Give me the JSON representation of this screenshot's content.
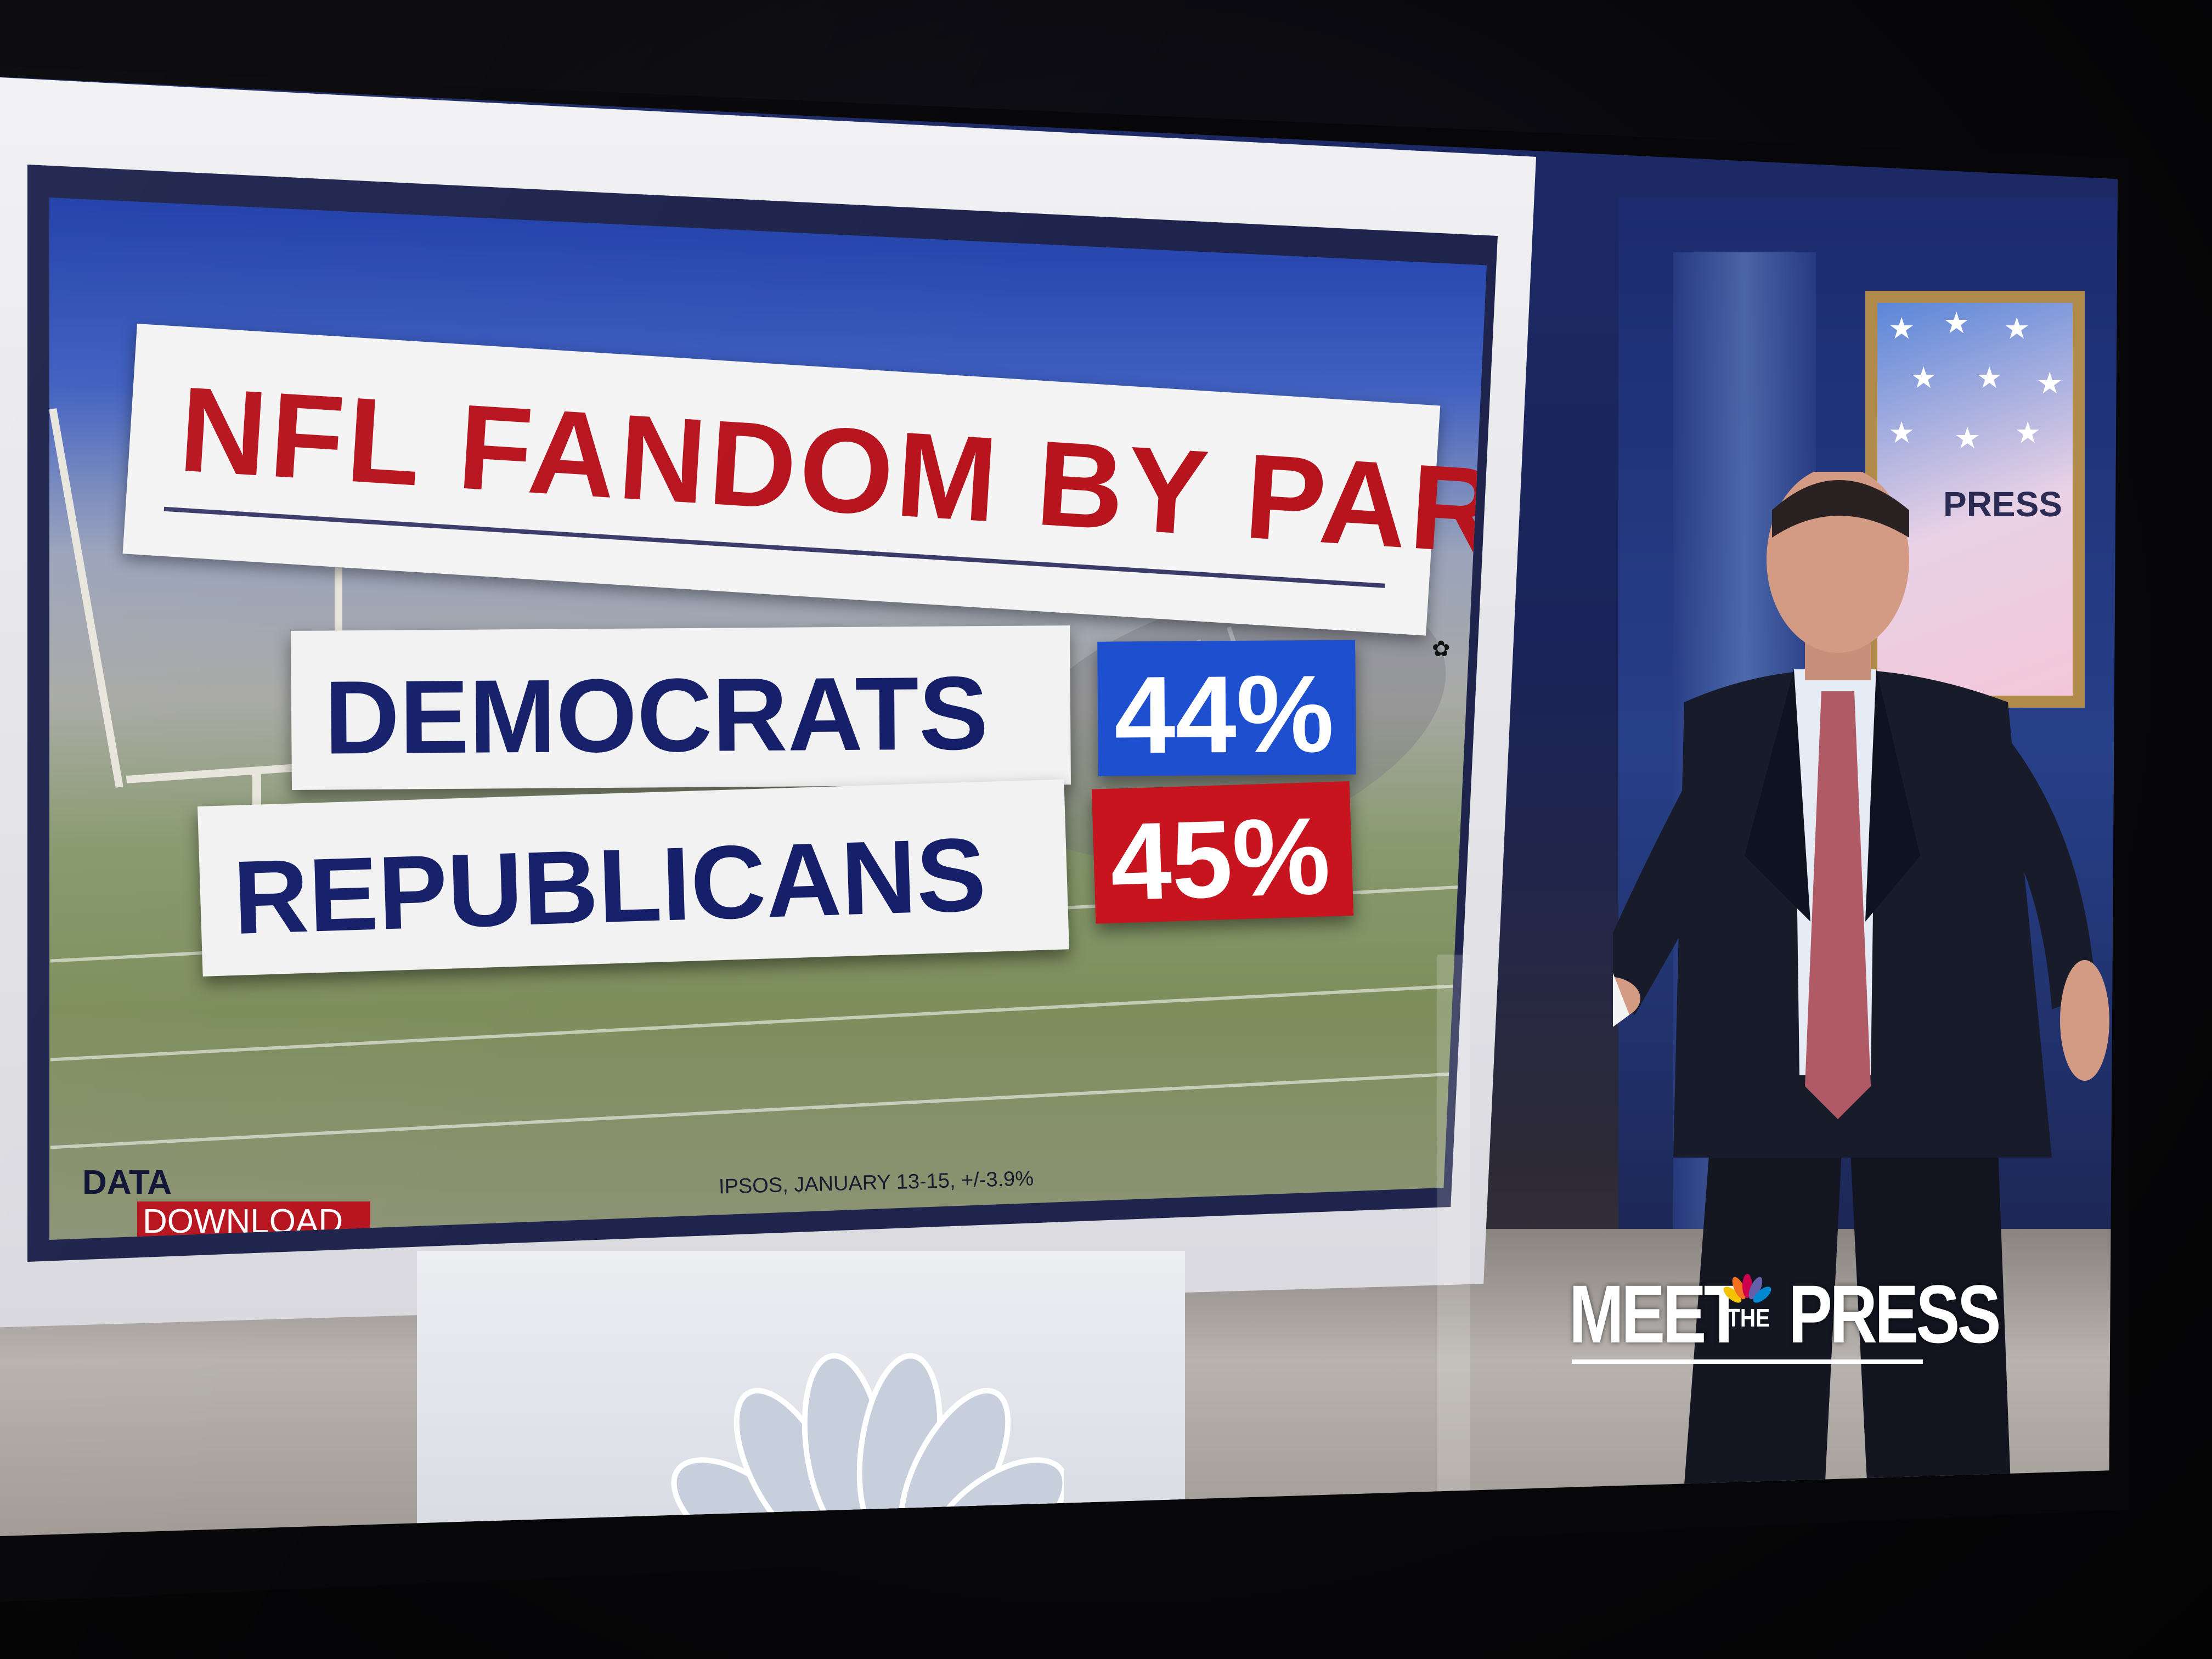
{
  "graphic": {
    "title": "NFL FANDOM BY PARTY",
    "rows": [
      {
        "label": "DEMOCRATS",
        "value": "44%",
        "color": "#1d4fcf"
      },
      {
        "label": "REPUBLICANS",
        "value": "45%",
        "color": "#c8141f"
      }
    ],
    "source": "IPSOS, JANUARY 13-15, +/-3.9%",
    "segment_line1": "DATA",
    "segment_line2": "DOWNLOAD"
  },
  "show_logo": {
    "part1": "MEET",
    "part2": "THE",
    "part3": "PRESS"
  },
  "background_sign": "PRESS",
  "colors": {
    "democrat_blue": "#1d4fcf",
    "republican_red": "#c8141f",
    "title_red": "#b7141e",
    "label_navy": "#16206a"
  }
}
